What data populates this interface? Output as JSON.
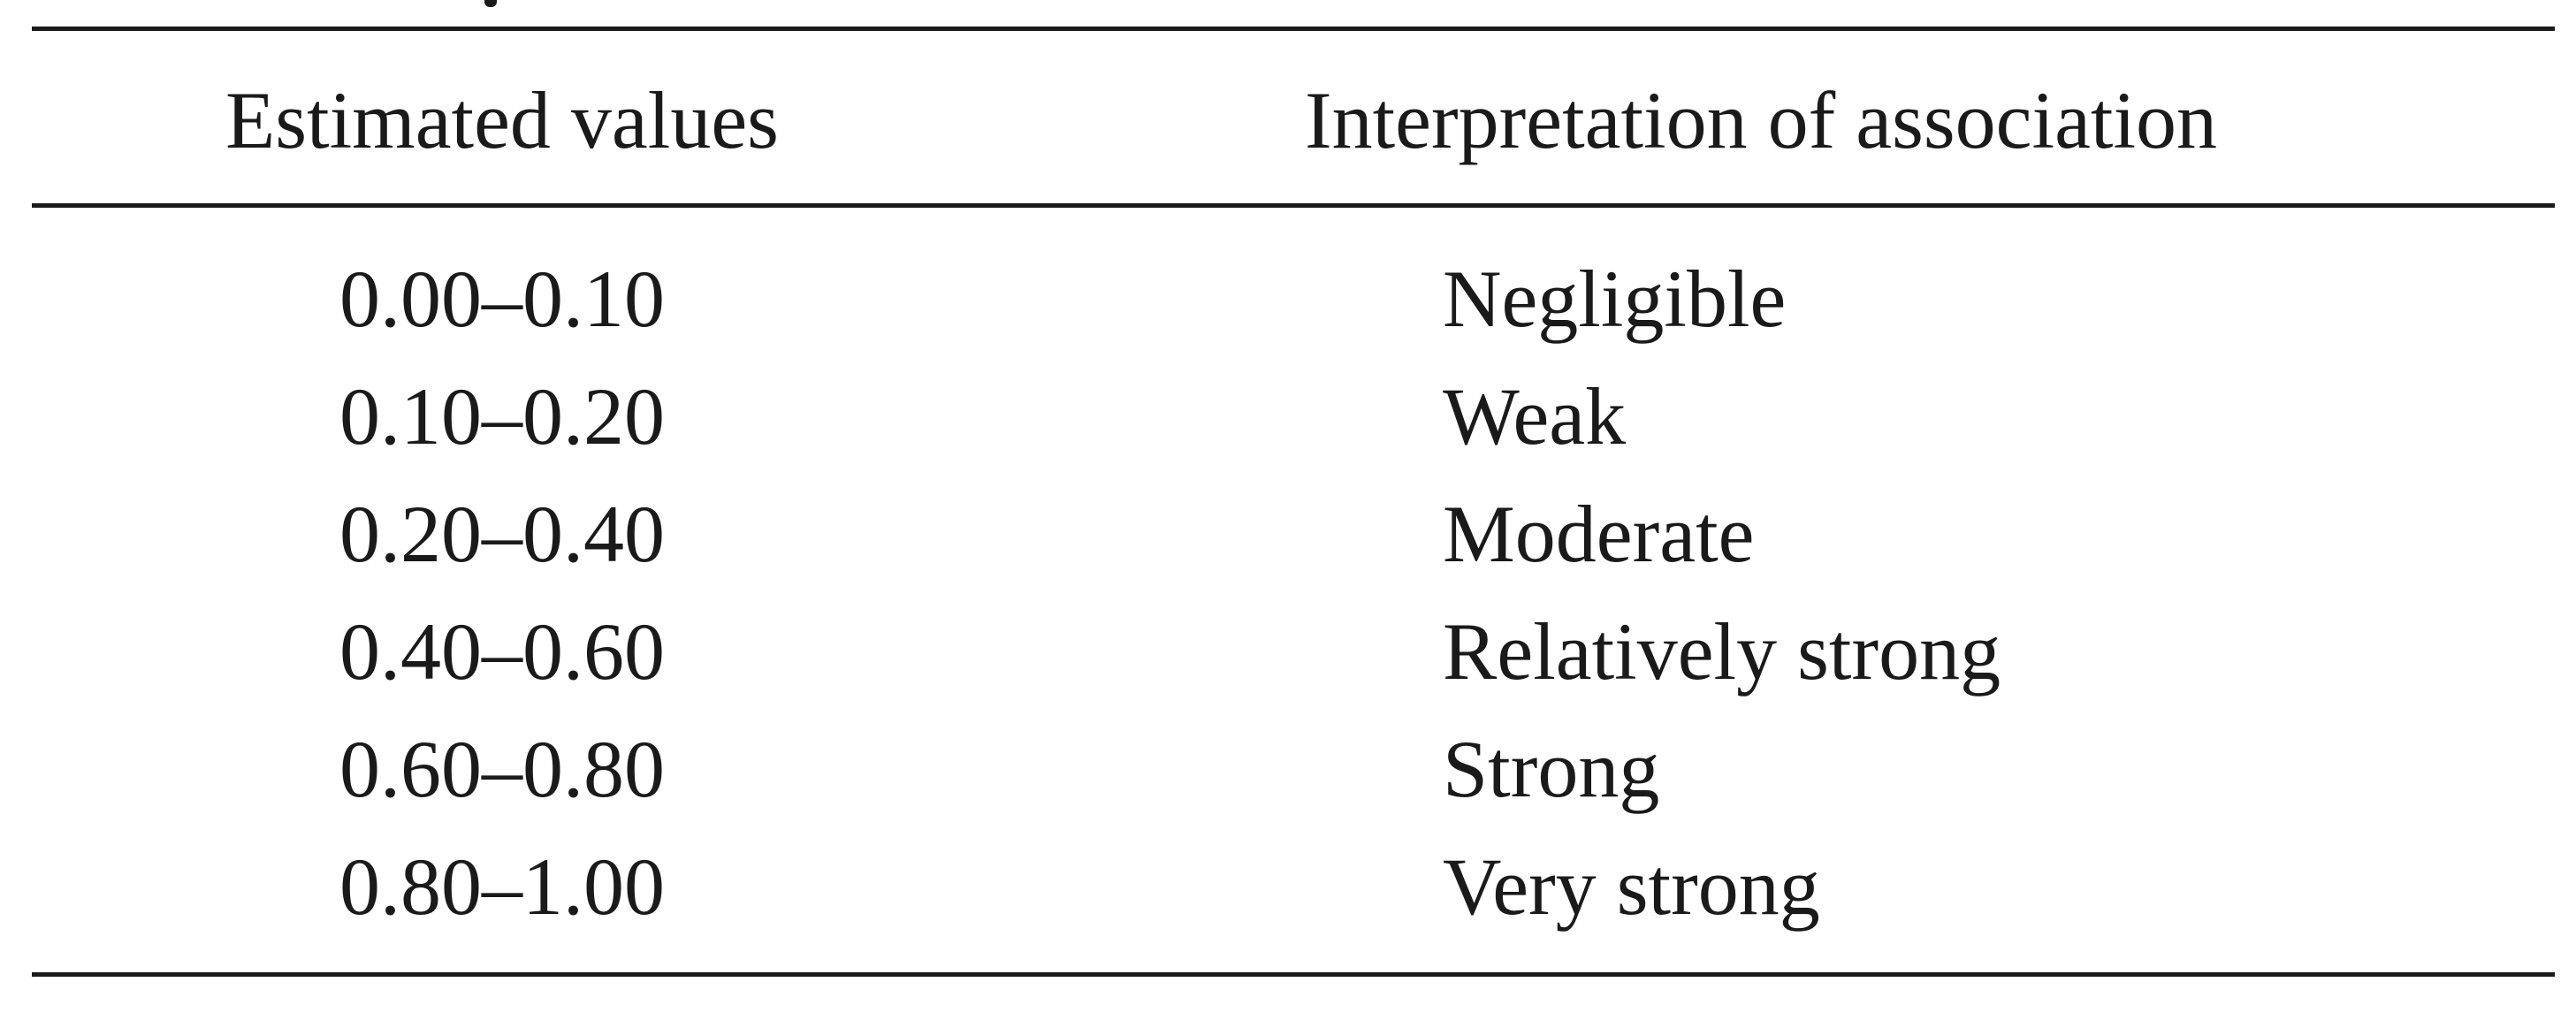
{
  "table": {
    "headers": [
      "Estimated values",
      "Interpretation of association"
    ],
    "rows": [
      {
        "range": "0.00–0.10",
        "interpretation": "Negligible"
      },
      {
        "range": "0.10–0.20",
        "interpretation": "Weak"
      },
      {
        "range": "0.20–0.40",
        "interpretation": "Moderate"
      },
      {
        "range": "0.40–0.60",
        "interpretation": "Relatively strong"
      },
      {
        "range": "0.60–0.80",
        "interpretation": "Strong"
      },
      {
        "range": "0.80–1.00",
        "interpretation": "Very strong"
      }
    ]
  }
}
